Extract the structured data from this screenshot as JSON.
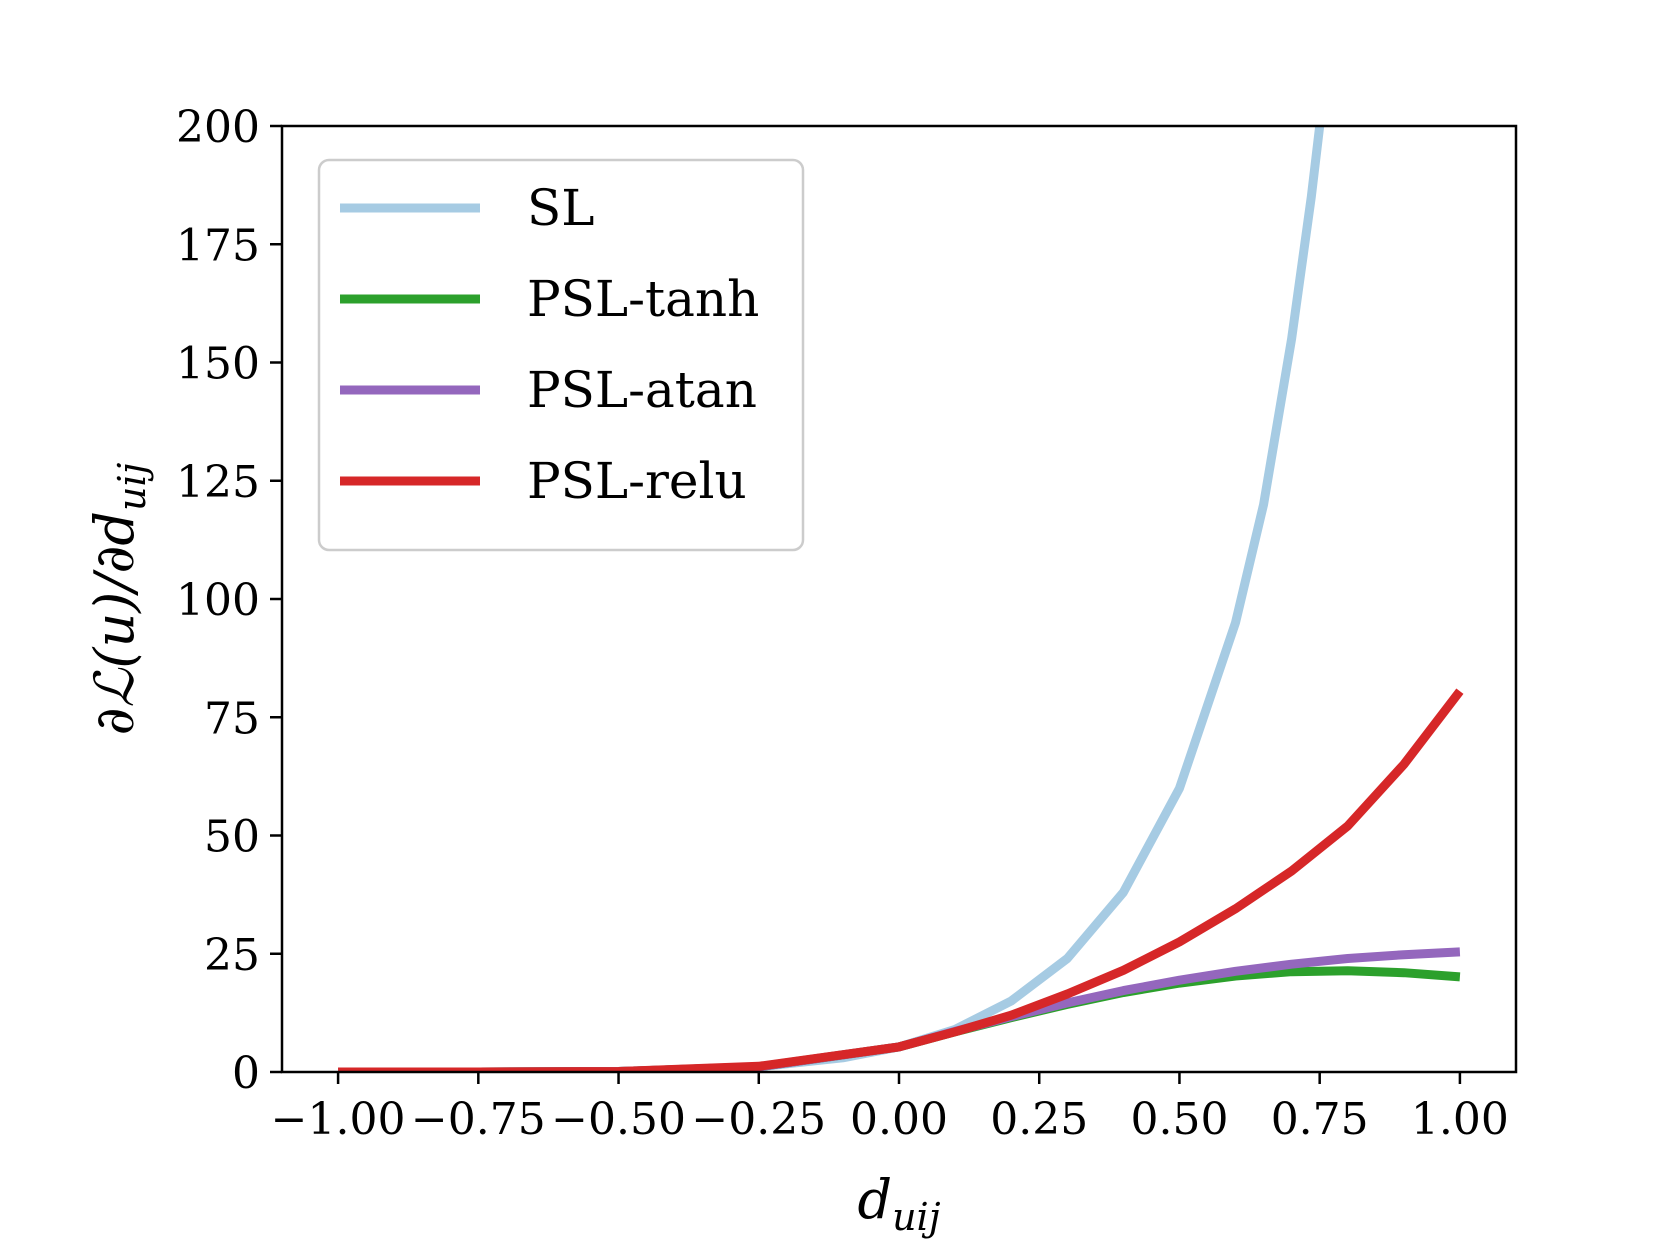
{
  "chart_data": {
    "type": "line",
    "xlabel": "d_uij",
    "ylabel": "∂L(u)/∂d_uij",
    "xlim": [
      -1.1,
      1.1
    ],
    "ylim": [
      0,
      200
    ],
    "xticks": [
      -1.0,
      -0.75,
      -0.5,
      -0.25,
      0.0,
      0.25,
      0.5,
      0.75,
      1.0
    ],
    "xtick_labels": [
      "−1.00",
      "−0.75",
      "−0.50",
      "−0.25",
      "0.00",
      "0.25",
      "0.50",
      "0.75",
      "1.00"
    ],
    "yticks": [
      0,
      25,
      50,
      75,
      100,
      125,
      150,
      175,
      200
    ],
    "ytick_labels": [
      "0",
      "25",
      "50",
      "75",
      "100",
      "125",
      "150",
      "175",
      "200"
    ],
    "grid": false,
    "legend_position": "top-left",
    "series": [
      {
        "name": "SL",
        "color": "#a6cbe3",
        "points": [
          [
            -1.0,
            0.0
          ],
          [
            -0.75,
            0.0
          ],
          [
            -0.5,
            0.1
          ],
          [
            -0.25,
            1.1
          ],
          [
            -0.1,
            3.0
          ],
          [
            0.0,
            5.3
          ],
          [
            0.1,
            9.0
          ],
          [
            0.2,
            15.0
          ],
          [
            0.3,
            24.0
          ],
          [
            0.4,
            38.0
          ],
          [
            0.5,
            60.0
          ],
          [
            0.6,
            95.0
          ],
          [
            0.65,
            120.0
          ],
          [
            0.7,
            155.0
          ],
          [
            0.735,
            185.0
          ],
          [
            0.75,
            200.0
          ]
        ]
      },
      {
        "name": "PSL-tanh",
        "color": "#2ca02c",
        "points": [
          [
            -1.0,
            0.0
          ],
          [
            -0.75,
            0.0
          ],
          [
            -0.5,
            0.1
          ],
          [
            -0.25,
            1.1
          ],
          [
            0.0,
            5.3
          ],
          [
            0.1,
            8.5
          ],
          [
            0.2,
            11.5
          ],
          [
            0.3,
            14.3
          ],
          [
            0.4,
            16.8
          ],
          [
            0.5,
            18.8
          ],
          [
            0.6,
            20.3
          ],
          [
            0.7,
            21.2
          ],
          [
            0.8,
            21.4
          ],
          [
            0.9,
            21.0
          ],
          [
            1.0,
            20.1
          ]
        ]
      },
      {
        "name": "PSL-atan",
        "color": "#9467bd",
        "points": [
          [
            -1.0,
            0.0
          ],
          [
            -0.75,
            0.0
          ],
          [
            -0.5,
            0.1
          ],
          [
            -0.25,
            1.1
          ],
          [
            0.0,
            5.3
          ],
          [
            0.1,
            8.6
          ],
          [
            0.2,
            11.7
          ],
          [
            0.3,
            14.6
          ],
          [
            0.4,
            17.2
          ],
          [
            0.5,
            19.4
          ],
          [
            0.6,
            21.3
          ],
          [
            0.7,
            22.8
          ],
          [
            0.8,
            24.0
          ],
          [
            0.9,
            24.8
          ],
          [
            1.0,
            25.4
          ]
        ]
      },
      {
        "name": "PSL-relu",
        "color": "#d62728",
        "points": [
          [
            -1.0,
            0.0
          ],
          [
            -0.75,
            0.0
          ],
          [
            -0.5,
            0.1
          ],
          [
            -0.25,
            1.2
          ],
          [
            0.0,
            5.3
          ],
          [
            0.1,
            8.5
          ],
          [
            0.2,
            12.0
          ],
          [
            0.3,
            16.5
          ],
          [
            0.4,
            21.5
          ],
          [
            0.5,
            27.5
          ],
          [
            0.6,
            34.5
          ],
          [
            0.7,
            42.5
          ],
          [
            0.8,
            52.0
          ],
          [
            0.9,
            65.0
          ],
          [
            1.0,
            80.5
          ]
        ]
      }
    ]
  }
}
